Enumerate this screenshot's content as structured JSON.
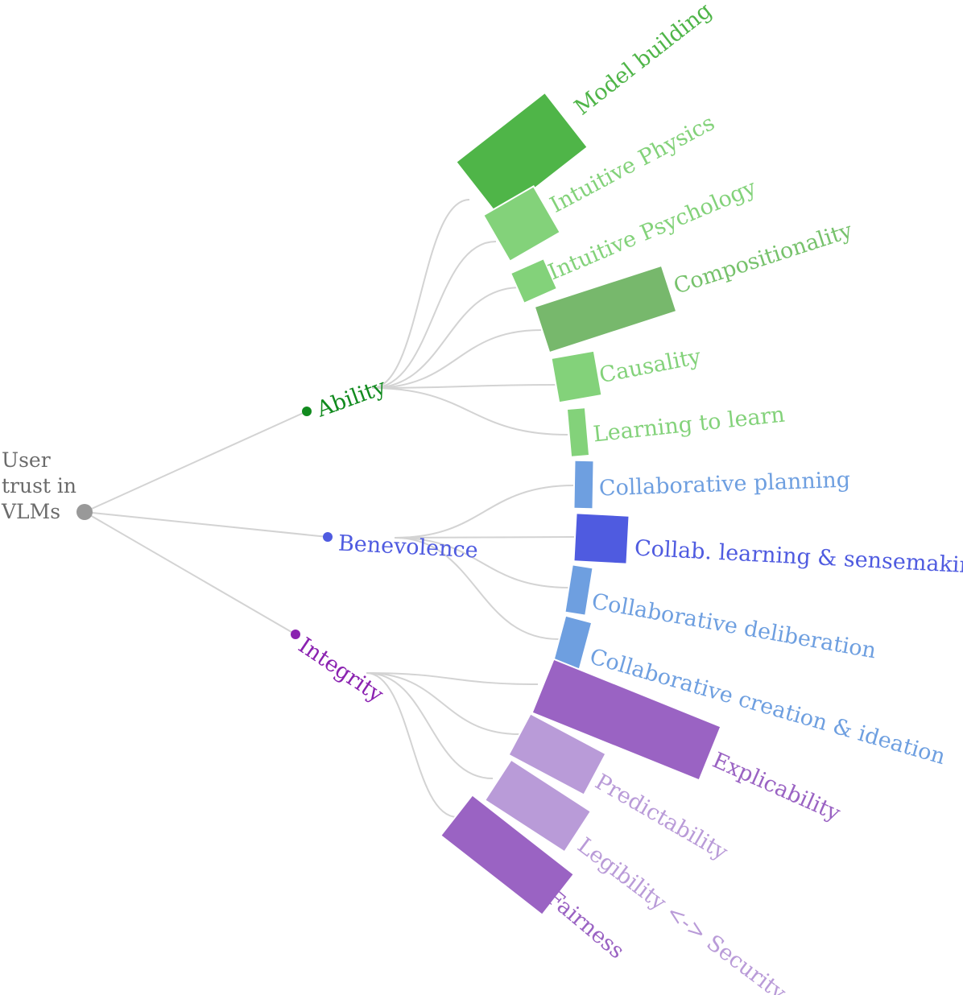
{
  "root": {
    "label_lines": [
      "User",
      "trust in",
      "VLMs"
    ],
    "color": "#999999"
  },
  "branches": [
    {
      "id": "ability",
      "label": "Ability",
      "color": "#118a1e",
      "leaves": [
        {
          "label": "Model building",
          "color": "#4fb548",
          "label_color": "#4fb548"
        },
        {
          "label": "Intuitive Physics",
          "color": "#83d27a",
          "label_color": "#83d27a"
        },
        {
          "label": "Intuitive Psychology",
          "color": "#83d27a",
          "label_color": "#83d27a"
        },
        {
          "label": "Compositionality",
          "color": "#77b86c",
          "label_color": "#77c26c"
        },
        {
          "label": "Causality",
          "color": "#83d27a",
          "label_color": "#83d27a"
        },
        {
          "label": "Learning to learn",
          "color": "#83d27a",
          "label_color": "#83d27a"
        }
      ]
    },
    {
      "id": "benevolence",
      "label": "Benevolence",
      "color": "#4f5be0",
      "leaves": [
        {
          "label": "Collaborative planning",
          "color": "#6e9fe0",
          "label_color": "#6e9fe0"
        },
        {
          "label": "Collab. learning & sensemaking",
          "color": "#4f5be0",
          "label_color": "#4f5be0"
        },
        {
          "label": "Collaborative deliberation",
          "color": "#6e9fe0",
          "label_color": "#6e9fe0"
        },
        {
          "label": "Collaborative creation & ideation",
          "color": "#6e9fe0",
          "label_color": "#6e9fe0"
        }
      ]
    },
    {
      "id": "integrity",
      "label": "Integrity",
      "color": "#8a22b0",
      "leaves": [
        {
          "label": "Explicability",
          "color": "#9a63c3",
          "label_color": "#9a63c3"
        },
        {
          "label": "Predictability",
          "color": "#b99bd8",
          "label_color": "#b99bd8"
        },
        {
          "label": "Legibility <-> Security",
          "color": "#b99bd8",
          "label_color": "#b99bd8"
        },
        {
          "label": "Fairness",
          "color": "#9a63c3",
          "label_color": "#9a63c3"
        }
      ]
    }
  ],
  "link_color": "#d3d3d3"
}
